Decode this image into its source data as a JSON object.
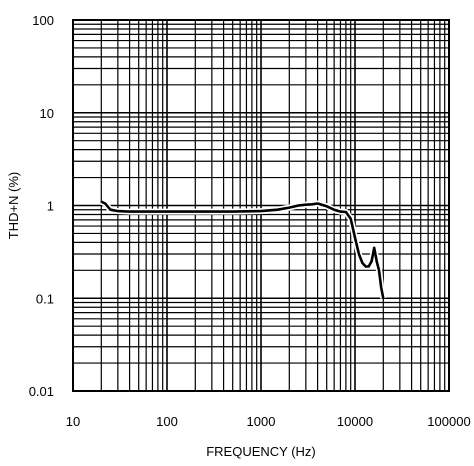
{
  "chart_data": {
    "type": "line",
    "title": "",
    "xlabel": "FREQUENCY (Hz)",
    "ylabel": "THD+N (%)",
    "x_scale": "log",
    "y_scale": "log",
    "xlim": [
      10,
      100000
    ],
    "ylim": [
      0.01,
      100
    ],
    "x_ticks": [
      "10",
      "100",
      "1000",
      "10000",
      "100000"
    ],
    "y_ticks": [
      "0.01",
      "0.1",
      "1",
      "10",
      "100"
    ],
    "grid": true,
    "series": [
      {
        "x": [
          20,
          22,
          25,
          30,
          40,
          60,
          100,
          200,
          500,
          1000,
          1500,
          2000,
          2500,
          3000,
          3500,
          4000,
          5000,
          6000,
          7000,
          8000,
          9000,
          10000,
          11000,
          12000,
          13000,
          14000,
          15000,
          16000,
          17000,
          18000,
          19000,
          20000
        ],
        "y": [
          1.1,
          1.05,
          0.9,
          0.87,
          0.86,
          0.86,
          0.86,
          0.86,
          0.86,
          0.87,
          0.9,
          0.95,
          1.0,
          1.02,
          1.03,
          1.05,
          0.98,
          0.9,
          0.86,
          0.85,
          0.72,
          0.45,
          0.3,
          0.24,
          0.22,
          0.22,
          0.25,
          0.35,
          0.25,
          0.2,
          0.13,
          0.1
        ]
      }
    ],
    "colors": {
      "line": "#000000",
      "grid": "#000000",
      "background": "#ffffff"
    }
  }
}
